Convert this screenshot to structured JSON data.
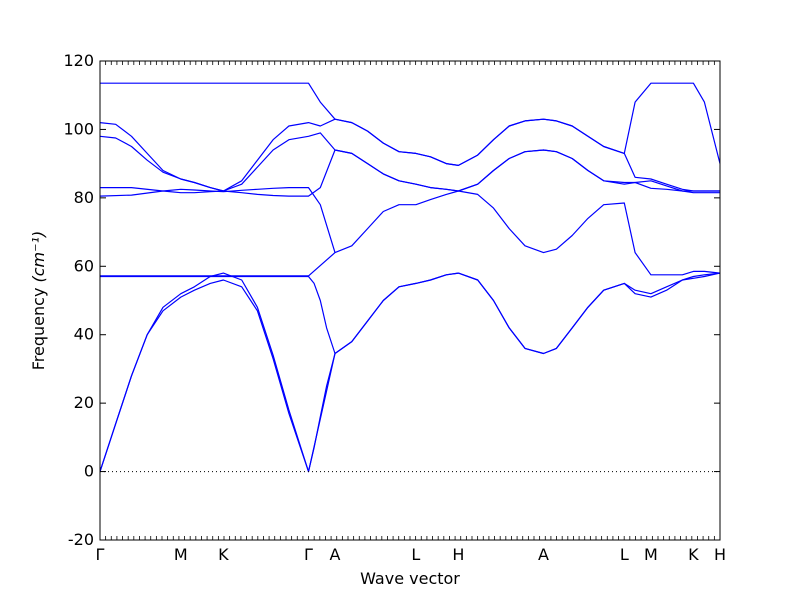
{
  "chart_data": {
    "type": "line",
    "xlabel": "Wave vector",
    "ylabel": "Frequency",
    "ylabel_unit": "(cm⁻¹)",
    "ylim": [
      -20,
      120
    ],
    "yticks": [
      -20,
      0,
      20,
      40,
      60,
      80,
      100,
      120
    ],
    "grid": false,
    "line_color": "#0000ff",
    "zero_line_color": "#000000",
    "kpoints": [
      {
        "label": "Γ",
        "x": 0.0
      },
      {
        "label": "M",
        "x": 0.2568
      },
      {
        "label": "K",
        "x": 0.3919
      },
      {
        "label": "Γ",
        "x": 0.6622
      },
      {
        "label": "A",
        "x": 0.7466
      },
      {
        "label": "L",
        "x": 1.0034
      },
      {
        "label": "H",
        "x": 1.1385
      },
      {
        "label": "A",
        "x": 1.4088
      },
      {
        "label": "L",
        "x": 1.6655
      },
      {
        "label": "M",
        "x": 1.75
      },
      {
        "label": "K",
        "x": 1.8851
      },
      {
        "label": "H",
        "x": 1.9696
      }
    ],
    "series": [
      {
        "x": [
          0,
          0.05,
          0.1,
          0.15,
          0.2,
          0.2568,
          0.3,
          0.35,
          0.3919,
          0.45,
          0.5,
          0.55,
          0.6,
          0.6622,
          0.7466,
          0.8,
          0.85,
          0.9,
          0.95,
          1.0034,
          1.05,
          1.1,
          1.1385,
          1.2,
          1.25,
          1.3,
          1.35,
          1.4088,
          1.45,
          1.5,
          1.55,
          1.6,
          1.6655,
          1.7,
          1.75,
          1.8,
          1.85,
          1.8851,
          1.92,
          1.9696
        ],
        "y": [
          0,
          14,
          28,
          40,
          48,
          52,
          54,
          57,
          58,
          56,
          48,
          34,
          18,
          0,
          34.5,
          38,
          44,
          50,
          54,
          55,
          56,
          57.5,
          58,
          56,
          50,
          42,
          36,
          34.5,
          36,
          42,
          48,
          53,
          55,
          53,
          52,
          54,
          56,
          56.5,
          57,
          58
        ]
      },
      {
        "x": [
          0,
          0.05,
          0.1,
          0.15,
          0.2,
          0.2568,
          0.3,
          0.35,
          0.3919,
          0.45,
          0.5,
          0.55,
          0.6,
          0.6622,
          0.68,
          0.7,
          0.72,
          0.7466,
          0.8,
          0.85,
          0.9,
          0.95,
          1.0034,
          1.05,
          1.1,
          1.1385,
          1.2,
          1.25,
          1.3,
          1.35,
          1.4088,
          1.45,
          1.5,
          1.55,
          1.6,
          1.6655,
          1.7,
          1.75,
          1.8,
          1.85,
          1.8851,
          1.92,
          1.9696
        ],
        "y": [
          0,
          14,
          28,
          40,
          47,
          51,
          53,
          55,
          56,
          54,
          47,
          33,
          17,
          0,
          7,
          16,
          25,
          34.5,
          38,
          44,
          50,
          54,
          55,
          56,
          57.5,
          58,
          56,
          50,
          42,
          36,
          34.5,
          36,
          42,
          48,
          53,
          55,
          52,
          51,
          53,
          56,
          57,
          57.5,
          58
        ]
      },
      {
        "x": [
          0,
          0.2568,
          0.3919,
          0.6622,
          0.7466,
          0.8,
          0.85,
          0.9,
          0.95,
          1.0034,
          1.05,
          1.1,
          1.1385,
          1.2,
          1.25,
          1.3,
          1.35,
          1.4088,
          1.45,
          1.5,
          1.55,
          1.6,
          1.6655,
          1.7,
          1.75,
          1.8,
          1.85,
          1.8851,
          1.92,
          1.9696
        ],
        "y": [
          57.2,
          57.2,
          57.2,
          57.2,
          64,
          66,
          71,
          76,
          78,
          78,
          79.5,
          81,
          82,
          81,
          77,
          71,
          66,
          64,
          65,
          69,
          74,
          78,
          78.5,
          64,
          57.5,
          57.5,
          57.5,
          58.5,
          58.5,
          58
        ]
      },
      {
        "x": [
          0,
          0.2568,
          0.3919,
          0.45,
          0.5,
          0.55,
          0.6,
          0.6622,
          0.68,
          0.7,
          0.72,
          0.7466
        ],
        "y": [
          57,
          57,
          57,
          57,
          57,
          57,
          57,
          57,
          55,
          50,
          42,
          34.5
        ]
      },
      {
        "x": [
          0,
          0.1,
          0.2,
          0.2568,
          0.3,
          0.35,
          0.3919,
          0.45,
          0.5,
          0.55,
          0.6,
          0.6622,
          0.7,
          0.7466
        ],
        "y": [
          80.5,
          80.8,
          82,
          82.5,
          82.3,
          82,
          81.8,
          82.2,
          82.5,
          82.8,
          83,
          83,
          78,
          64
        ]
      },
      {
        "x": [
          0,
          0.1,
          0.2,
          0.2568,
          0.3,
          0.35,
          0.3919,
          0.45,
          0.5,
          0.55,
          0.6,
          0.6622,
          0.7,
          0.7466,
          0.8,
          0.85,
          0.9,
          0.95,
          1.0034,
          1.05,
          1.1,
          1.1385,
          1.2,
          1.25,
          1.3,
          1.35,
          1.4088,
          1.45,
          1.5,
          1.55,
          1.6,
          1.6655,
          1.7,
          1.75,
          1.8,
          1.85,
          1.8851,
          1.92,
          1.9696
        ],
        "y": [
          83,
          83,
          82,
          81.5,
          81.5,
          81.8,
          82,
          81.5,
          81,
          80.7,
          80.5,
          80.5,
          83,
          94,
          93,
          90,
          87,
          85,
          84,
          83,
          82.5,
          82,
          84,
          88,
          91.5,
          93.5,
          94,
          93.5,
          91.5,
          88,
          85,
          84,
          84.5,
          85,
          83.5,
          82,
          81.5,
          81.5,
          81.5
        ]
      },
      {
        "x": [
          0,
          0.05,
          0.1,
          0.15,
          0.2,
          0.2568,
          0.3,
          0.35,
          0.3919,
          0.45,
          0.5,
          0.55,
          0.6,
          0.6622,
          0.7,
          0.7466,
          0.8,
          0.85,
          0.9,
          0.95,
          1.0034,
          1.05,
          1.1,
          1.1385,
          1.2,
          1.25,
          1.3,
          1.35,
          1.4088,
          1.45,
          1.5,
          1.55,
          1.6,
          1.6655,
          1.7,
          1.75,
          1.8,
          1.85,
          1.8851,
          1.92,
          1.9696
        ],
        "y": [
          98,
          97.5,
          95,
          91,
          87.5,
          85.5,
          84.5,
          83,
          82,
          84,
          89,
          94,
          97,
          98,
          99,
          94,
          93,
          90,
          87,
          85,
          84,
          83,
          82.5,
          82,
          84,
          88,
          91.5,
          93.5,
          94,
          93.5,
          91.5,
          88,
          85,
          84.5,
          84.5,
          82.8,
          82.5,
          82,
          82,
          82,
          82
        ]
      },
      {
        "x": [
          0,
          0.05,
          0.1,
          0.15,
          0.2,
          0.2568,
          0.3,
          0.35,
          0.3919,
          0.45,
          0.5,
          0.55,
          0.6,
          0.6622,
          0.7,
          0.7466,
          0.8,
          0.85,
          0.9,
          0.95,
          1.0034,
          1.05,
          1.1,
          1.1385,
          1.2,
          1.25,
          1.3,
          1.35,
          1.4088,
          1.45,
          1.5,
          1.55,
          1.6,
          1.6655,
          1.7,
          1.75,
          1.8,
          1.85,
          1.8851,
          1.92,
          1.9696
        ],
        "y": [
          102,
          101.5,
          98,
          93,
          88,
          85.5,
          84.5,
          83,
          82,
          85,
          91,
          97,
          101,
          102,
          101,
          103,
          102,
          99.5,
          96,
          93.5,
          93,
          92,
          90,
          89.5,
          92.5,
          97,
          101,
          102.5,
          103,
          102.5,
          101,
          98,
          95,
          93,
          86,
          85.5,
          84,
          82.5,
          82,
          82,
          82
        ]
      },
      {
        "x": [
          0,
          0.2568,
          0.3919,
          0.6622,
          0.7,
          0.7466,
          0.8,
          0.85,
          0.9,
          0.95,
          1.0034,
          1.05,
          1.1,
          1.1385,
          1.2,
          1.25,
          1.3,
          1.35,
          1.4088,
          1.45,
          1.5,
          1.55,
          1.6,
          1.6655,
          1.7,
          1.75,
          1.8,
          1.85,
          1.8851,
          1.92,
          1.9696
        ],
        "y": [
          113.5,
          113.5,
          113.5,
          113.5,
          108,
          103,
          102,
          99.5,
          96,
          93.5,
          93,
          92,
          90,
          89.5,
          92.5,
          97,
          101,
          102.5,
          103,
          102.5,
          101,
          98,
          95,
          93,
          108,
          113.5,
          113.5,
          113.5,
          113.5,
          108,
          90
        ]
      }
    ]
  }
}
